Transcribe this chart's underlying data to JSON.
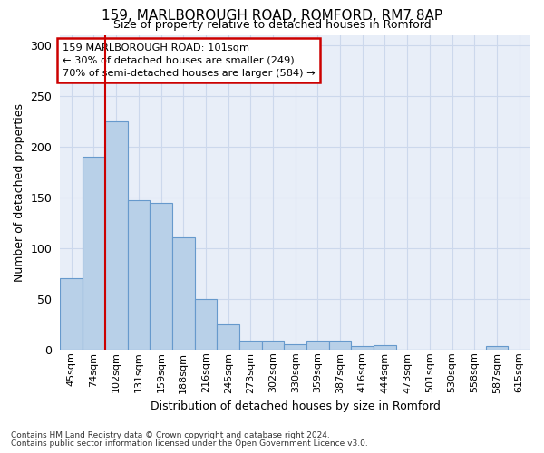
{
  "title1": "159, MARLBOROUGH ROAD, ROMFORD, RM7 8AP",
  "title2": "Size of property relative to detached houses in Romford",
  "xlabel": "Distribution of detached houses by size in Romford",
  "ylabel": "Number of detached properties",
  "categories": [
    "45sqm",
    "74sqm",
    "102sqm",
    "131sqm",
    "159sqm",
    "188sqm",
    "216sqm",
    "245sqm",
    "273sqm",
    "302sqm",
    "330sqm",
    "359sqm",
    "387sqm",
    "416sqm",
    "444sqm",
    "473sqm",
    "501sqm",
    "530sqm",
    "558sqm",
    "587sqm",
    "615sqm"
  ],
  "bar_values": [
    70,
    190,
    225,
    147,
    145,
    111,
    50,
    25,
    9,
    9,
    5,
    9,
    9,
    3,
    4,
    0,
    0,
    0,
    0,
    3,
    0
  ],
  "bar_color": "#b8d0e8",
  "bar_edge_color": "#6699cc",
  "ylim": [
    0,
    310
  ],
  "yticks": [
    0,
    50,
    100,
    150,
    200,
    250,
    300
  ],
  "vline_x": 1.5,
  "annotation_text_line1": "159 MARLBOROUGH ROAD: 101sqm",
  "annotation_text_line2": "← 30% of detached houses are smaller (249)",
  "annotation_text_line3": "70% of semi-detached houses are larger (584) →",
  "annotation_box_facecolor": "#ffffff",
  "annotation_box_edgecolor": "#cc0000",
  "vline_color": "#cc0000",
  "grid_color": "#ccd8ec",
  "bg_color": "#e8eef8",
  "footer_line1": "Contains HM Land Registry data © Crown copyright and database right 2024.",
  "footer_line2": "Contains public sector information licensed under the Open Government Licence v3.0."
}
